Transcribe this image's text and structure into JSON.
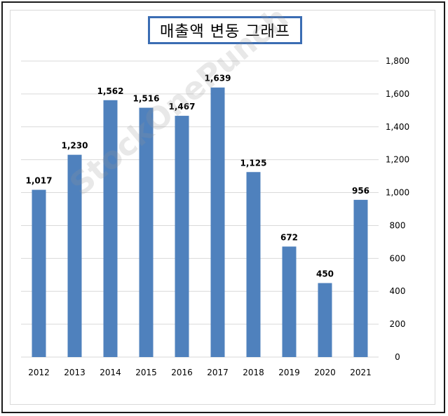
{
  "title": "매출액 변동 그래프",
  "watermark": "StockOnePunch",
  "chart_data": {
    "type": "bar",
    "title": "매출액 변동 그래프",
    "xlabel": "",
    "ylabel": "",
    "categories": [
      "2012",
      "2013",
      "2014",
      "2015",
      "2016",
      "2017",
      "2018",
      "2019",
      "2020",
      "2021"
    ],
    "values": [
      1017,
      1230,
      1562,
      1516,
      1467,
      1639,
      1125,
      672,
      450,
      956
    ],
    "value_labels": [
      "1,017",
      "1,230",
      "1,562",
      "1,516",
      "1,467",
      "1,639",
      "1,125",
      "672",
      "450",
      "956"
    ],
    "ylim": [
      0,
      1800
    ],
    "y_ticks": [
      0,
      200,
      400,
      600,
      800,
      1000,
      1200,
      1400,
      1600,
      1800
    ],
    "y_tick_labels": [
      "0",
      "200",
      "400",
      "600",
      "800",
      "1,000",
      "1,200",
      "1,400",
      "1,600",
      "1,800"
    ],
    "y_axis_side": "right",
    "grid": true,
    "bar_color": "#4f81bd",
    "gridline_color": "#d9d9d9"
  }
}
